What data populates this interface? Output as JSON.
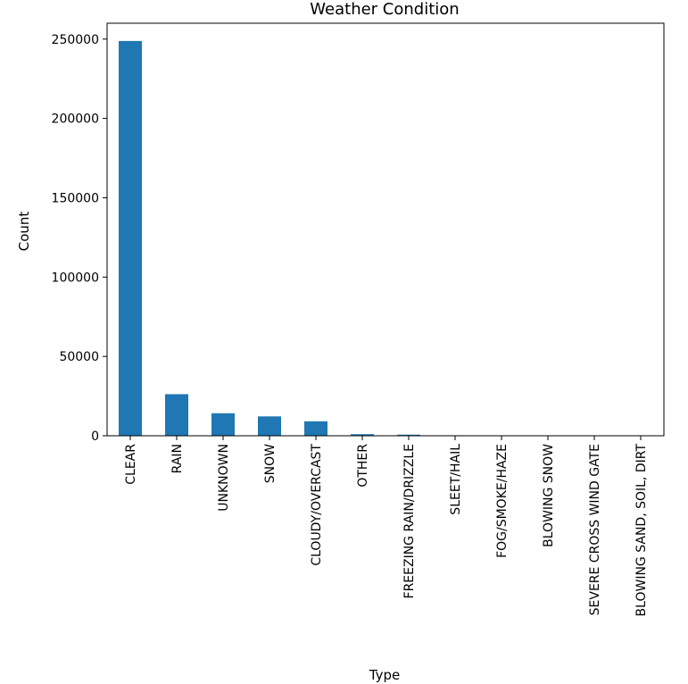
{
  "chart_data": {
    "type": "bar",
    "title": "Weather Condition",
    "xlabel": "Type",
    "ylabel": "Count",
    "categories": [
      "CLEAR",
      "RAIN",
      "UNKNOWN",
      "SNOW",
      "CLOUDY/OVERCAST",
      "OTHER",
      "FREEZING RAIN/DRIZZLE",
      "SLEET/HAIL",
      "FOG/SMOKE/HAZE",
      "BLOWING SNOW",
      "SEVERE CROSS WIND GATE",
      "BLOWING SAND, SOIL, DIRT"
    ],
    "values": [
      248800,
      26200,
      14200,
      12200,
      9100,
      1000,
      700,
      300,
      250,
      100,
      60,
      20
    ],
    "ylim": [
      0,
      260000
    ],
    "yticks": [
      0,
      50000,
      100000,
      150000,
      200000,
      250000
    ],
    "ytick_labels": [
      "0",
      "50000",
      "100000",
      "150000",
      "200000",
      "250000"
    ],
    "grid": false,
    "bar_color": "#1f77b4"
  }
}
